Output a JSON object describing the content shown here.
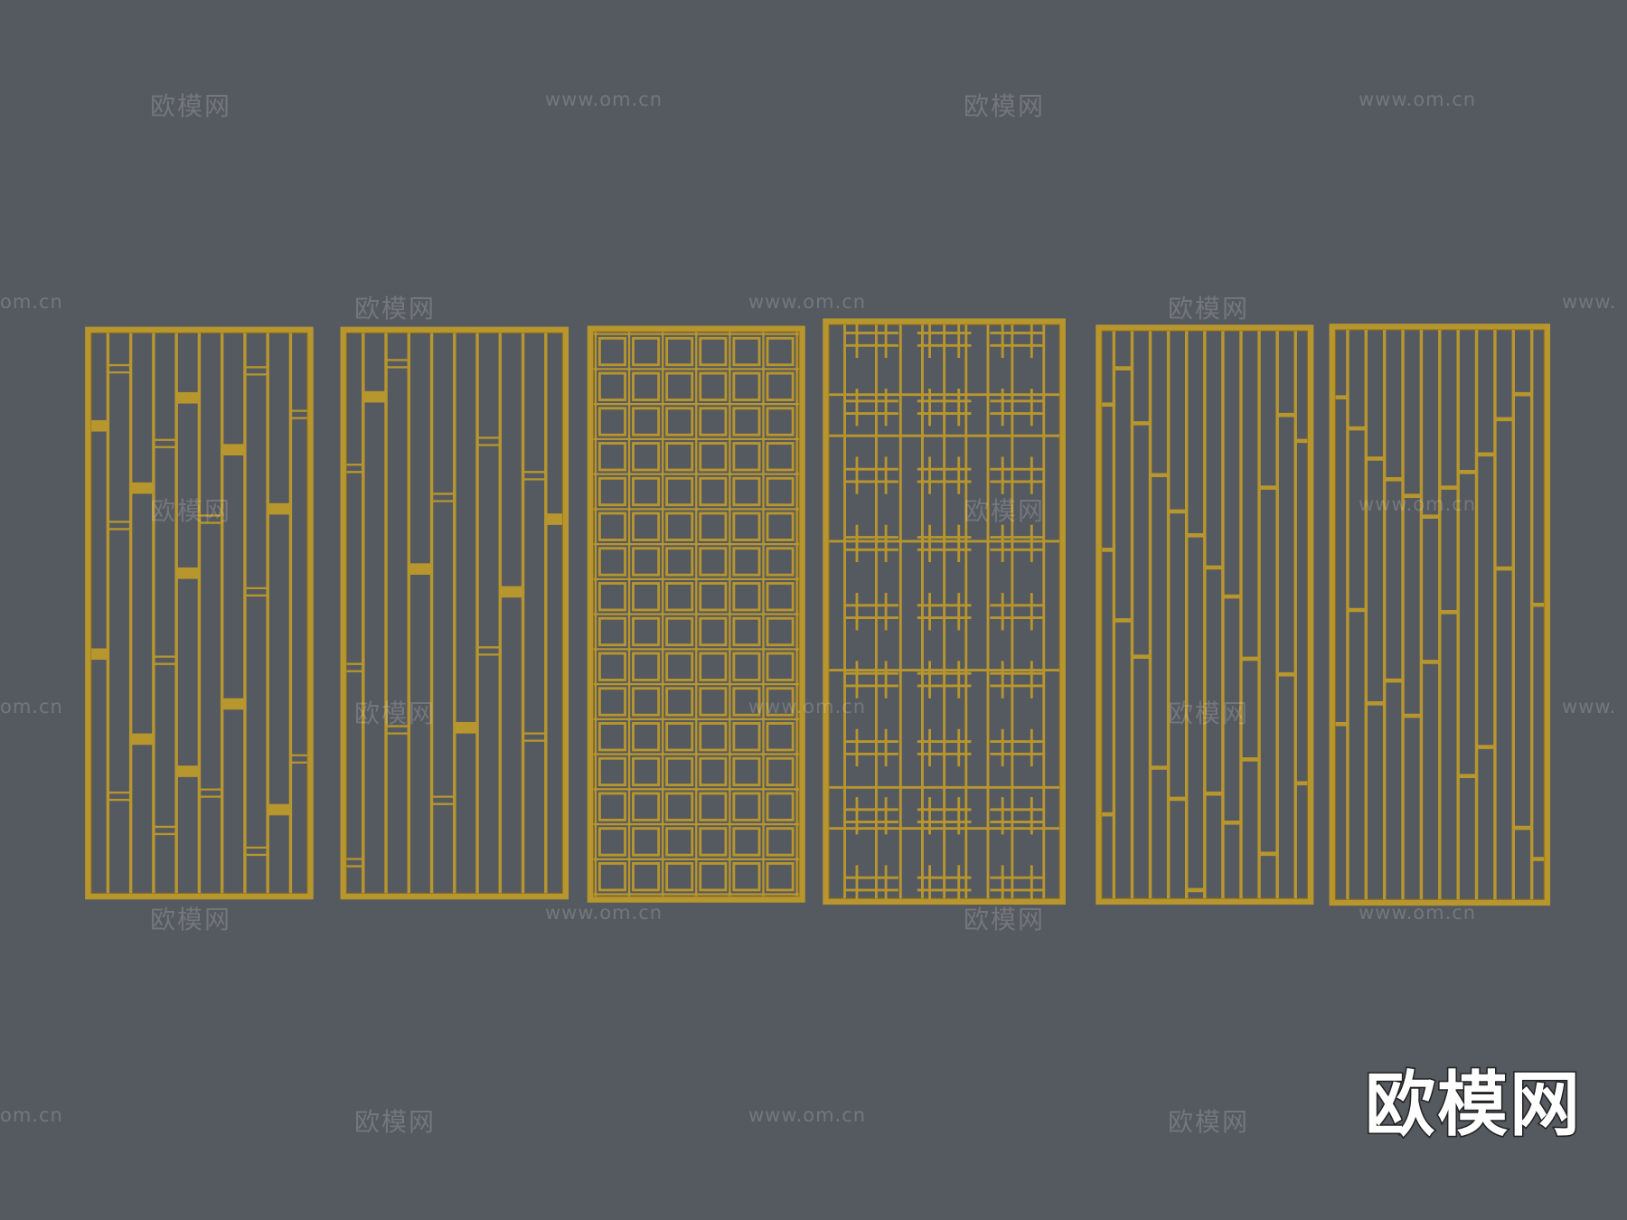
{
  "watermark": {
    "logo_text": "欧模网",
    "url_text": "www.om.cn",
    "partial_left": "om.cn",
    "partial_right": "www."
  },
  "brand_logo": "欧模网",
  "colors": {
    "background": "#555960",
    "gold": "#b8962e",
    "gold_dark": "#8a6d1c"
  },
  "panels": [
    {
      "name": "panel-bamboo-offset-bars"
    },
    {
      "name": "panel-sparse-vertical-bars"
    },
    {
      "name": "panel-square-lattice"
    },
    {
      "name": "panel-chinese-window-lattice"
    },
    {
      "name": "panel-stepped-vertical-bars"
    },
    {
      "name": "panel-v-stepped-vertical-bars"
    }
  ]
}
